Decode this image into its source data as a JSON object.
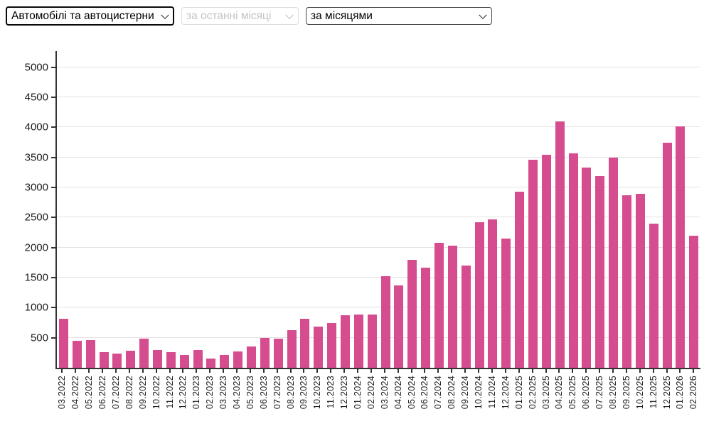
{
  "colors": {
    "bar": "#d64d8f",
    "axis": "#333333",
    "grid": "#e2e2e2"
  },
  "controls": {
    "category_select": {
      "value": "Автомобілі та автоцистерни",
      "disabled": false
    },
    "recent_months_select": {
      "value": "за останні місяці",
      "disabled": true
    },
    "grouping_select": {
      "value": "за місяцями",
      "disabled": false
    }
  },
  "chart_data": {
    "type": "bar",
    "title": "",
    "xlabel": "",
    "ylabel": "",
    "grid": true,
    "legend": "none",
    "ylim": [
      0,
      5270
    ],
    "y_ticks": [
      500,
      1000,
      1500,
      2000,
      2500,
      3000,
      3500,
      4000,
      4500,
      5000
    ],
    "categories": [
      "03.2022",
      "04.2022",
      "05.2022",
      "06.2022",
      "07.2022",
      "08.2022",
      "09.2022",
      "10.2022",
      "11.2022",
      "12.2022",
      "01.2023",
      "02.2023",
      "03.2023",
      "04.2023",
      "05.2023",
      "06.2023",
      "07.2023",
      "08.2023",
      "09.2023",
      "10.2023",
      "11.2023",
      "12.2023",
      "01.2024",
      "02.2024",
      "03.2024",
      "04.2024",
      "05.2024",
      "06.2024",
      "07.2024",
      "08.2024",
      "09.2024",
      "10.2024",
      "11.2024",
      "12.2024",
      "01.2025",
      "02.2025",
      "03.2025",
      "04.2025",
      "05.2025",
      "06.2025",
      "07.2025",
      "08.2025",
      "09.2025",
      "10.2025",
      "11.2025",
      "12.2025",
      "01.2026",
      "02.2026"
    ],
    "values": [
      820,
      455,
      465,
      260,
      235,
      280,
      490,
      295,
      255,
      210,
      290,
      150,
      210,
      270,
      360,
      500,
      490,
      625,
      810,
      685,
      740,
      880,
      885,
      890,
      1520,
      1370,
      1800,
      1665,
      2075,
      2035,
      1700,
      2420,
      2470,
      2150,
      2930,
      3460,
      3550,
      4100,
      3565,
      3330,
      3190,
      3500,
      2870,
      2900,
      2400,
      3740,
      4020,
      2200
    ]
  }
}
